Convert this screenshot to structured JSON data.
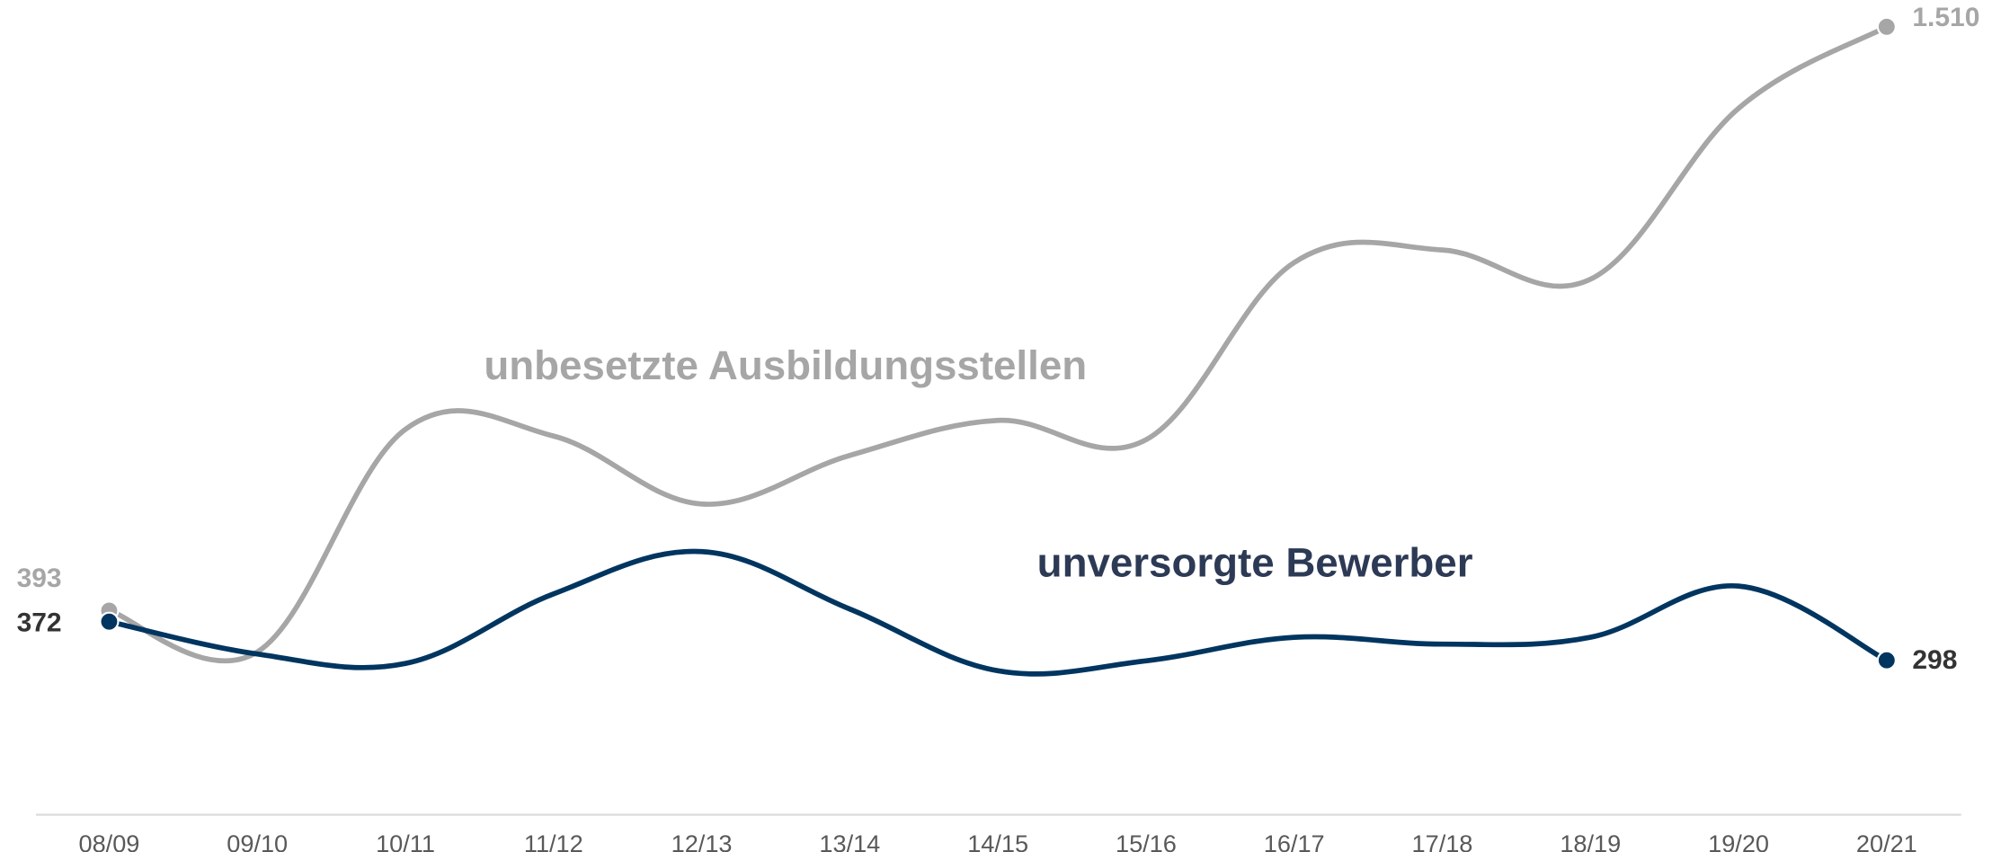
{
  "chart_data": {
    "type": "line",
    "categories": [
      "08/09",
      "09/10",
      "10/11",
      "11/12",
      "12/13",
      "13/14",
      "14/15",
      "15/16",
      "16/17",
      "17/18",
      "18/19",
      "19/20",
      "20/21"
    ],
    "series": [
      {
        "name": "unbesetzte Ausbildungsstellen",
        "color": "#a6a6a6",
        "values": [
          393,
          314,
          740,
          727,
          597,
          690,
          757,
          720,
          1059,
          1083,
          1027,
          1354,
          1510
        ],
        "value_labels": [
          "393",
          null,
          null,
          null,
          null,
          null,
          null,
          null,
          null,
          null,
          null,
          null,
          "1.510"
        ]
      },
      {
        "name": "unversorgte Bewerber",
        "color": "#003560",
        "values": [
          372,
          310,
          292,
          425,
          506,
          396,
          278,
          297,
          342,
          329,
          342,
          440,
          298
        ],
        "value_labels": [
          "372",
          null,
          null,
          null,
          null,
          null,
          null,
          null,
          null,
          null,
          null,
          null,
          "298"
        ]
      }
    ],
    "ylim": [
      0,
      1560
    ],
    "grid": false
  }
}
